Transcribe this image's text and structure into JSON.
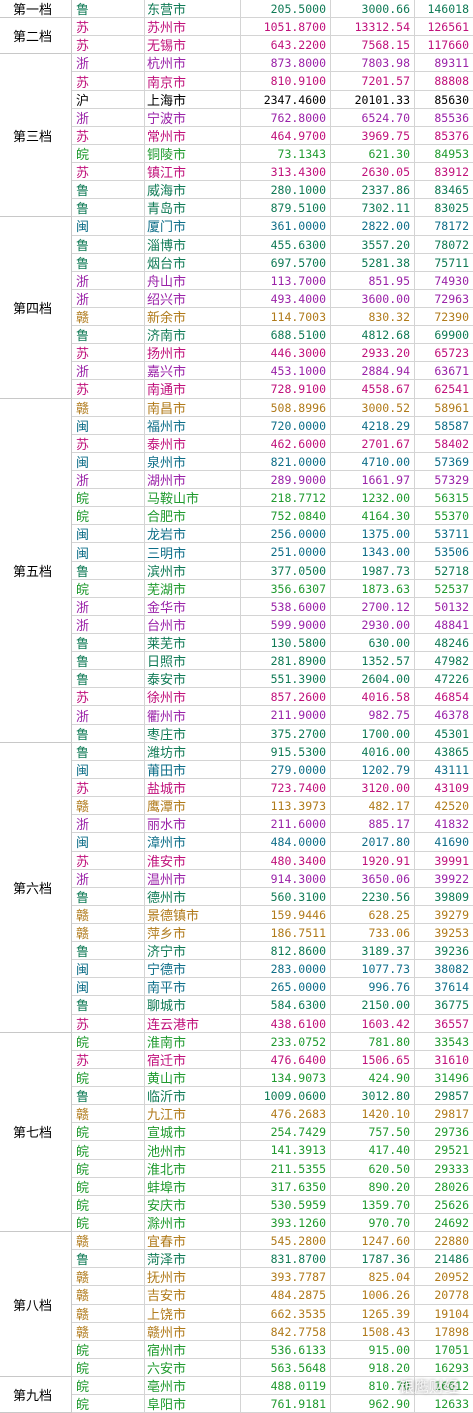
{
  "province_colors": {
    "鲁": "#0f7a55",
    "苏": "#c0107a",
    "浙": "#9a22a8",
    "沪": "#000000",
    "皖": "#1f9a2e",
    "闽": "#0e6e88",
    "赣": "#b07a1a"
  },
  "tiers": [
    {
      "label": "第一档",
      "rows": [
        [
          "鲁",
          "东营市",
          "205.5000",
          "3000.66",
          "146018"
        ]
      ]
    },
    {
      "label": "第二档",
      "rows": [
        [
          "苏",
          "苏州市",
          "1051.8700",
          "13312.54",
          "126561"
        ],
        [
          "苏",
          "无锡市",
          "643.2200",
          "7568.15",
          "117660"
        ]
      ]
    },
    {
      "label": "第三档",
      "rows": [
        [
          "浙",
          "杭州市",
          "873.8000",
          "7803.98",
          "89311"
        ],
        [
          "苏",
          "南京市",
          "810.9100",
          "7201.57",
          "88808"
        ],
        [
          "沪",
          "上海市",
          "2347.4600",
          "20101.33",
          "85630"
        ],
        [
          "浙",
          "宁波市",
          "762.8000",
          "6524.70",
          "85536"
        ],
        [
          "苏",
          "常州市",
          "464.9700",
          "3969.75",
          "85376"
        ],
        [
          "皖",
          "铜陵市",
          "73.1343",
          "621.30",
          "84953"
        ],
        [
          "苏",
          "镇江市",
          "313.4300",
          "2630.05",
          "83912"
        ],
        [
          "鲁",
          "威海市",
          "280.1000",
          "2337.86",
          "83465"
        ],
        [
          "鲁",
          "青岛市",
          "879.5100",
          "7302.11",
          "83025"
        ]
      ]
    },
    {
      "label": "第四档",
      "rows": [
        [
          "闽",
          "厦门市",
          "361.0000",
          "2822.00",
          "78172"
        ],
        [
          "鲁",
          "淄博市",
          "455.6300",
          "3557.20",
          "78072"
        ],
        [
          "鲁",
          "烟台市",
          "697.5700",
          "5281.38",
          "75711"
        ],
        [
          "浙",
          "舟山市",
          "113.7000",
          "851.95",
          "74930"
        ],
        [
          "浙",
          "绍兴市",
          "493.4000",
          "3600.00",
          "72963"
        ],
        [
          "赣",
          "新余市",
          "114.7003",
          "830.32",
          "72390"
        ],
        [
          "鲁",
          "济南市",
          "688.5100",
          "4812.68",
          "69900"
        ],
        [
          "苏",
          "扬州市",
          "446.3000",
          "2933.20",
          "65723"
        ],
        [
          "浙",
          "嘉兴市",
          "453.1000",
          "2884.94",
          "63671"
        ],
        [
          "苏",
          "南通市",
          "728.9100",
          "4558.67",
          "62541"
        ]
      ]
    },
    {
      "label": "第五档",
      "rows": [
        [
          "赣",
          "南昌市",
          "508.8996",
          "3000.52",
          "58961"
        ],
        [
          "闽",
          "福州市",
          "720.0000",
          "4218.29",
          "58587"
        ],
        [
          "苏",
          "泰州市",
          "462.6000",
          "2701.67",
          "58402"
        ],
        [
          "闽",
          "泉州市",
          "821.0000",
          "4710.00",
          "57369"
        ],
        [
          "浙",
          "湖州市",
          "289.9000",
          "1661.97",
          "57329"
        ],
        [
          "皖",
          "马鞍山市",
          "218.7712",
          "1232.00",
          "56315"
        ],
        [
          "皖",
          "合肥市",
          "752.0840",
          "4164.30",
          "55370"
        ],
        [
          "闽",
          "龙岩市",
          "256.0000",
          "1375.00",
          "53711"
        ],
        [
          "闽",
          "三明市",
          "251.0000",
          "1343.00",
          "53506"
        ],
        [
          "鲁",
          "滨州市",
          "377.0500",
          "1987.73",
          "52718"
        ],
        [
          "皖",
          "芜湖市",
          "356.6307",
          "1873.63",
          "52537"
        ],
        [
          "浙",
          "金华市",
          "538.6000",
          "2700.12",
          "50132"
        ],
        [
          "浙",
          "台州市",
          "599.9000",
          "2930.00",
          "48841"
        ],
        [
          "鲁",
          "莱芜市",
          "130.5800",
          "630.00",
          "48246"
        ],
        [
          "鲁",
          "日照市",
          "281.8900",
          "1352.57",
          "47982"
        ],
        [
          "鲁",
          "泰安市",
          "551.3900",
          "2604.00",
          "47226"
        ],
        [
          "苏",
          "徐州市",
          "857.2600",
          "4016.58",
          "46854"
        ],
        [
          "浙",
          "衢州市",
          "211.9000",
          "982.75",
          "46378"
        ],
        [
          "鲁",
          "枣庄市",
          "375.2700",
          "1700.00",
          "45301"
        ]
      ]
    },
    {
      "label": "第六档",
      "rows": [
        [
          "鲁",
          "潍坊市",
          "915.5300",
          "4016.00",
          "43865"
        ],
        [
          "闽",
          "莆田市",
          "279.0000",
          "1202.79",
          "43111"
        ],
        [
          "苏",
          "盐城市",
          "723.7400",
          "3120.00",
          "43109"
        ],
        [
          "赣",
          "鹰潭市",
          "113.3973",
          "482.17",
          "42520"
        ],
        [
          "浙",
          "丽水市",
          "211.6000",
          "885.17",
          "41832"
        ],
        [
          "闽",
          "漳州市",
          "484.0000",
          "2017.80",
          "41690"
        ],
        [
          "苏",
          "淮安市",
          "480.3400",
          "1920.91",
          "39991"
        ],
        [
          "浙",
          "温州市",
          "914.3000",
          "3650.06",
          "39922"
        ],
        [
          "鲁",
          "德州市",
          "560.3100",
          "2230.56",
          "39809"
        ],
        [
          "赣",
          "景德镇市",
          "159.9446",
          "628.25",
          "39279"
        ],
        [
          "赣",
          "萍乡市",
          "186.7511",
          "733.06",
          "39253"
        ],
        [
          "鲁",
          "济宁市",
          "812.8600",
          "3189.37",
          "39236"
        ],
        [
          "闽",
          "宁德市",
          "283.0000",
          "1077.73",
          "38082"
        ],
        [
          "闽",
          "南平市",
          "265.0000",
          "996.76",
          "37614"
        ],
        [
          "鲁",
          "聊城市",
          "584.6300",
          "2150.00",
          "36775"
        ],
        [
          "苏",
          "连云港市",
          "438.6100",
          "1603.42",
          "36557"
        ]
      ]
    },
    {
      "label": "第七档",
      "rows": [
        [
          "皖",
          "淮南市",
          "233.0752",
          "781.80",
          "33543"
        ],
        [
          "苏",
          "宿迁市",
          "476.6400",
          "1506.65",
          "31610"
        ],
        [
          "皖",
          "黄山市",
          "134.9073",
          "424.90",
          "31496"
        ],
        [
          "鲁",
          "临沂市",
          "1009.0600",
          "3012.80",
          "29857"
        ],
        [
          "赣",
          "九江市",
          "476.2683",
          "1420.10",
          "29817"
        ],
        [
          "皖",
          "宣城市",
          "254.7429",
          "757.50",
          "29736"
        ],
        [
          "皖",
          "池州市",
          "141.3913",
          "417.40",
          "29521"
        ],
        [
          "皖",
          "淮北市",
          "211.5355",
          "620.50",
          "29333"
        ],
        [
          "皖",
          "蚌埠市",
          "317.6350",
          "890.20",
          "28026"
        ],
        [
          "皖",
          "安庆市",
          "530.5959",
          "1359.70",
          "25626"
        ],
        [
          "皖",
          "滁州市",
          "393.1260",
          "970.70",
          "24692"
        ]
      ]
    },
    {
      "label": "第八档",
      "rows": [
        [
          "赣",
          "宜春市",
          "545.2800",
          "1247.60",
          "22880"
        ],
        [
          "鲁",
          "菏泽市",
          "831.8700",
          "1787.36",
          "21486"
        ],
        [
          "赣",
          "抚州市",
          "393.7787",
          "825.04",
          "20952"
        ],
        [
          "赣",
          "吉安市",
          "484.2875",
          "1006.26",
          "20778"
        ],
        [
          "赣",
          "上饶市",
          "662.3535",
          "1265.39",
          "19104"
        ],
        [
          "赣",
          "赣州市",
          "842.7758",
          "1508.43",
          "17898"
        ],
        [
          "皖",
          "宿州市",
          "536.6133",
          "915.00",
          "17051"
        ],
        [
          "皖",
          "六安市",
          "563.5648",
          "918.20",
          "16293"
        ]
      ]
    },
    {
      "label": "第九档",
      "rows": [
        [
          "皖",
          "亳州市",
          "488.0119",
          "810.70",
          "16612"
        ],
        [
          "皖",
          "阜阳市",
          "761.9181",
          "962.90",
          "12633"
        ]
      ]
    }
  ],
  "watermark": "银鹰财经"
}
